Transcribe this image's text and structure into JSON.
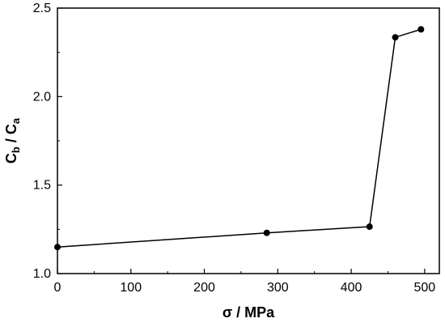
{
  "chart_data": {
    "type": "line",
    "title": "",
    "xlabel": "σ / MPa",
    "ylabel": {
      "c1": "C",
      "s1": "b",
      "sep": " / ",
      "c2": "C",
      "s2": "a"
    },
    "xlim": [
      0,
      520
    ],
    "ylim": [
      1.0,
      2.5
    ],
    "x_ticks": [
      0,
      100,
      200,
      300,
      400,
      500
    ],
    "y_ticks": [
      1.0,
      1.5,
      2.0,
      2.5
    ],
    "x_tick_labels": [
      "0",
      "100",
      "200",
      "300",
      "400",
      "500"
    ],
    "y_tick_labels": [
      "1.0",
      "1.5",
      "2.0",
      "2.5"
    ],
    "grid": false,
    "series": [
      {
        "color": "#000000",
        "marker": "circle",
        "x": [
          0,
          285,
          425,
          460,
          495
        ],
        "y": [
          1.15,
          1.23,
          1.265,
          2.335,
          2.38
        ]
      }
    ]
  }
}
